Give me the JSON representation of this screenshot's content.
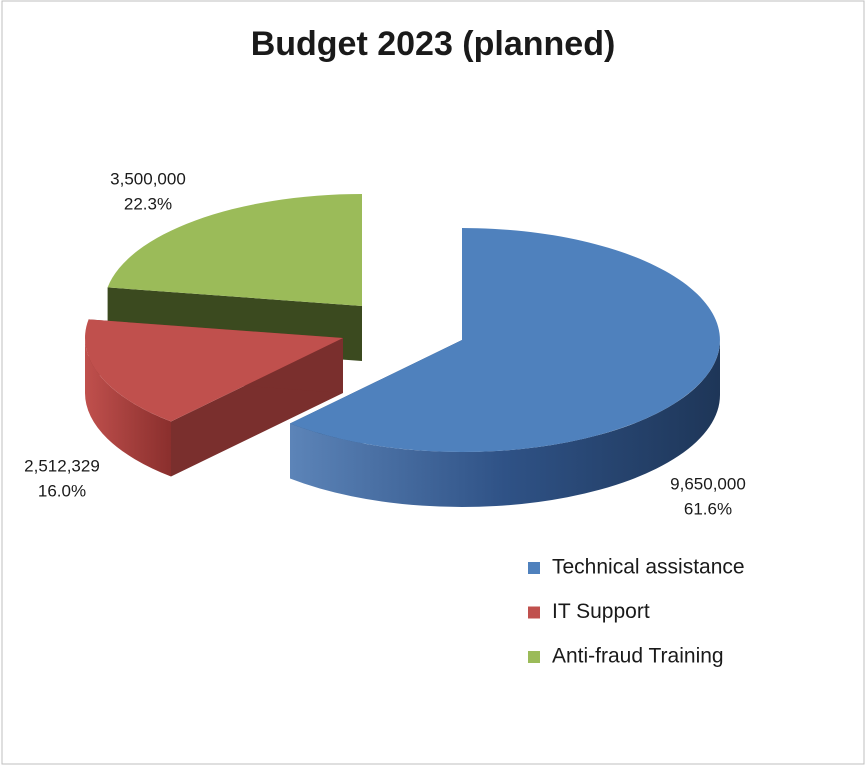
{
  "chart_data": {
    "type": "pie3d",
    "title": "Budget 2023 (planned)",
    "categories": [
      "Technical assistance",
      "IT Support",
      "Anti-fraud Training"
    ],
    "values": [
      9650000,
      2512329,
      3500000
    ],
    "value_labels": [
      "9,650,000",
      "2,512,329",
      "3,500,000"
    ],
    "percents": [
      61.6,
      16.0,
      22.3
    ],
    "percent_labels": [
      "61.6%",
      "16.0%",
      "22.3%"
    ],
    "colors": [
      "#4f81bd",
      "#c0504d",
      "#9bbb59"
    ],
    "legend": "right"
  }
}
